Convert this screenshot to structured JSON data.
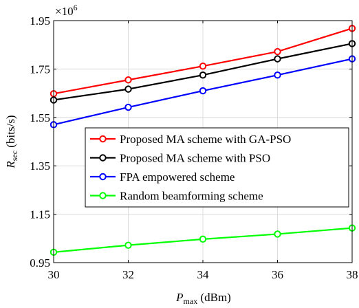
{
  "chart_data": {
    "type": "line",
    "title": "",
    "xlabel": {
      "main": "P",
      "sub": "max",
      "unit": " (dBm)"
    },
    "ylabel": {
      "main": "R",
      "sub": "sec",
      "unit": " (bits/s)"
    },
    "exponent": {
      "base": "×10",
      "power": "6"
    },
    "x": [
      30,
      32,
      34,
      36,
      38
    ],
    "xlim": [
      30,
      38
    ],
    "ylim": [
      0.95,
      1.95
    ],
    "xticks": [
      30,
      32,
      34,
      36,
      38
    ],
    "yticks": [
      0.95,
      1.15,
      1.35,
      1.55,
      1.75,
      1.95
    ],
    "ytick_labels": [
      "0.95",
      "1.15",
      "1.35",
      "1.55",
      "1.75",
      "1.95"
    ],
    "grid": true,
    "legend_position": "center-right",
    "series": [
      {
        "name": "Proposed MA scheme with GA-PSO",
        "color": "#ff0000",
        "marker": "circle",
        "values": [
          1.648,
          1.705,
          1.762,
          1.822,
          1.918
        ]
      },
      {
        "name": "Proposed MA scheme with PSO",
        "color": "#000000",
        "marker": "circle",
        "values": [
          1.622,
          1.667,
          1.725,
          1.792,
          1.855
        ]
      },
      {
        "name": "FPA empowered scheme",
        "color": "#0000ff",
        "marker": "circle",
        "values": [
          1.52,
          1.592,
          1.66,
          1.725,
          1.792
        ]
      },
      {
        "name": "Random beamforming scheme",
        "color": "#00ff00",
        "marker": "circle",
        "values": [
          0.993,
          1.022,
          1.047,
          1.068,
          1.093
        ]
      }
    ]
  }
}
